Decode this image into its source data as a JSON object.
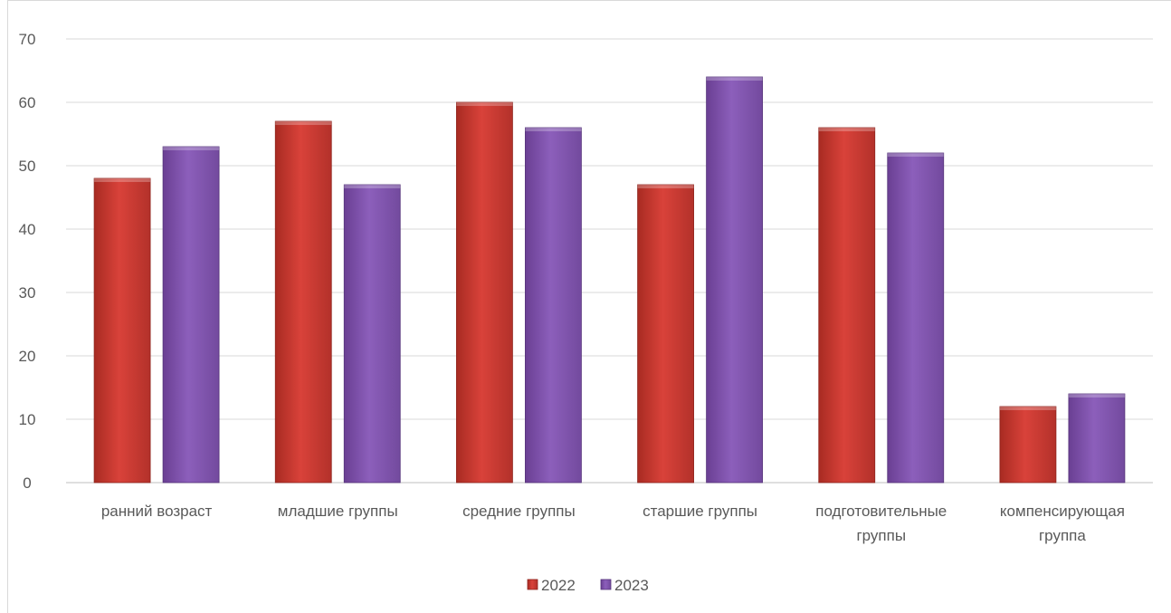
{
  "chart_data": {
    "type": "bar",
    "categories": [
      [
        "ранний возраст"
      ],
      [
        "младшие группы"
      ],
      [
        "средние группы"
      ],
      [
        "старшие группы"
      ],
      [
        "подготовительные",
        "группы"
      ],
      [
        "компенсирующая",
        "группа"
      ]
    ],
    "series": [
      {
        "name": "2022",
        "values": [
          48,
          57,
          60,
          47,
          56,
          12
        ],
        "color": "#c0392b"
      },
      {
        "name": "2023",
        "values": [
          53,
          47,
          56,
          64,
          52,
          14
        ],
        "color": "#7b4fa6"
      }
    ],
    "ylim": [
      0,
      70
    ],
    "yticks": [
      0,
      10,
      20,
      30,
      40,
      50,
      60,
      70
    ],
    "grid": true,
    "legend_position": "bottom"
  }
}
